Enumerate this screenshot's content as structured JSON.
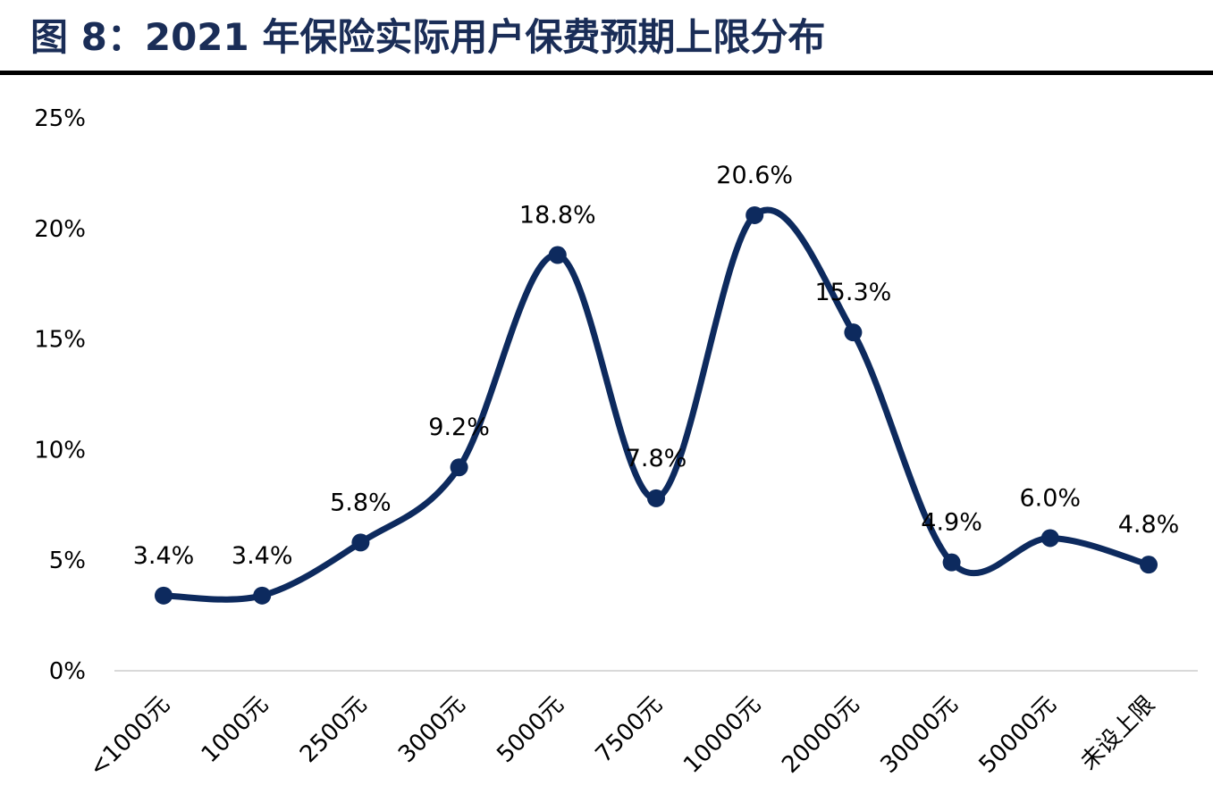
{
  "figure": {
    "title": "图 8：2021 年保险实际用户保费预期上限分布"
  },
  "chart_data": {
    "type": "line",
    "smooth": true,
    "title": "",
    "xlabel": "",
    "ylabel": "",
    "categories": [
      "<1000元",
      "1000元",
      "2500元",
      "3000元",
      "5000元",
      "7500元",
      "10000元",
      "20000元",
      "30000元",
      "50000元",
      "未设上限"
    ],
    "values": [
      3.4,
      3.4,
      5.8,
      9.2,
      18.8,
      7.8,
      20.6,
      15.3,
      4.9,
      6.0,
      4.8
    ],
    "data_labels": [
      "3.4%",
      "3.4%",
      "5.8%",
      "9.2%",
      "18.8%",
      "7.8%",
      "20.6%",
      "15.3%",
      "4.9%",
      "6.0%",
      "4.8%"
    ],
    "ylim": [
      0,
      25
    ],
    "y_ticks": [
      0,
      5,
      10,
      15,
      20,
      25
    ],
    "y_tick_labels": [
      "0%",
      "5%",
      "10%",
      "15%",
      "20%",
      "25%"
    ],
    "grid": false,
    "legend": "none",
    "line_color": "#0d2a5e"
  }
}
